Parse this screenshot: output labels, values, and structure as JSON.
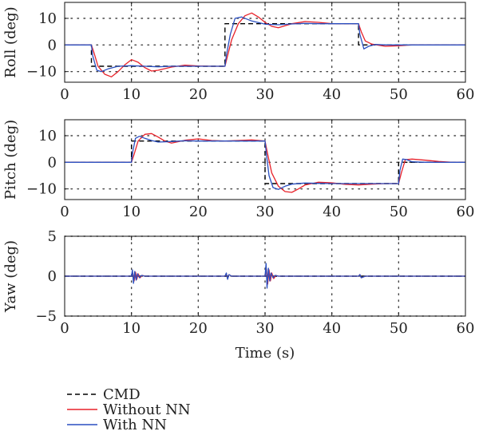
{
  "chart_data": [
    {
      "type": "line",
      "ylabel": "Roll (deg)",
      "xlabel": "",
      "xlim": [
        0,
        60
      ],
      "ylim": [
        -14,
        16
      ],
      "xticks": [
        "0",
        "10",
        "20",
        "30",
        "40",
        "50",
        "60"
      ],
      "yticks": [
        "10",
        "0",
        "−10"
      ],
      "ytick_values": [
        10,
        0,
        -10
      ],
      "grid": "dotted",
      "series": [
        {
          "name": "CMD",
          "color": "#000000",
          "dash": "dashed",
          "x": [
            0,
            4,
            4,
            24,
            24,
            44,
            44,
            60
          ],
          "y": [
            0,
            0,
            -8,
            -8,
            8,
            8,
            0,
            0
          ]
        },
        {
          "name": "Without NN",
          "color": "#e8222a",
          "x": [
            0,
            4,
            4.4,
            5,
            6,
            7,
            8,
            9,
            10,
            11,
            12,
            13,
            14,
            16,
            18,
            20,
            22,
            24,
            24.4,
            25,
            26,
            27,
            28,
            29,
            30,
            31,
            32,
            33,
            34,
            36,
            38,
            40,
            42,
            44,
            44.4,
            45,
            46,
            48,
            50,
            52,
            60
          ],
          "y": [
            0,
            0,
            -3,
            -8,
            -11,
            -12,
            -10,
            -7.5,
            -5.5,
            -6.5,
            -8.5,
            -9.8,
            -9.5,
            -8.3,
            -7.6,
            -7.9,
            -8,
            -8,
            -4,
            2,
            8,
            11,
            12,
            10.5,
            8.5,
            7,
            6.5,
            7.2,
            8,
            8.8,
            8.5,
            8,
            8,
            8,
            5,
            1.5,
            0.3,
            -0.5,
            -0.3,
            0,
            0
          ]
        },
        {
          "name": "With NN",
          "color": "#2a4fc0",
          "x": [
            0,
            4,
            4.2,
            4.8,
            5.5,
            6.5,
            8,
            10,
            12,
            14,
            16,
            18,
            20,
            22,
            24,
            24.2,
            24.8,
            25.5,
            26.5,
            28,
            30,
            32,
            34,
            36,
            38,
            40,
            42,
            44,
            44.2,
            44.8,
            45.5,
            46.5,
            48,
            60
          ],
          "y": [
            0,
            0,
            -4,
            -9.5,
            -10,
            -9,
            -8,
            -7.8,
            -8,
            -8.2,
            -8,
            -8,
            -8,
            -8,
            -8,
            -4,
            4,
            10,
            10.5,
            9,
            7.8,
            7.6,
            7.9,
            8.1,
            8,
            8,
            8,
            8,
            4,
            -1.5,
            -0.5,
            0.2,
            0,
            0
          ]
        }
      ]
    },
    {
      "type": "line",
      "ylabel": "Pitch (deg)",
      "xlabel": "",
      "xlim": [
        0,
        60
      ],
      "ylim": [
        -14,
        16
      ],
      "xticks": [
        "0",
        "10",
        "20",
        "30",
        "40",
        "50",
        "60"
      ],
      "yticks": [
        "10",
        "0",
        "−10"
      ],
      "ytick_values": [
        10,
        0,
        -10
      ],
      "grid": "dotted",
      "series": [
        {
          "name": "CMD",
          "color": "#000000",
          "dash": "dashed",
          "x": [
            0,
            10,
            10,
            30,
            30,
            50,
            50,
            60
          ],
          "y": [
            0,
            0,
            8,
            8,
            -8,
            -8,
            0,
            0
          ]
        },
        {
          "name": "Without NN",
          "color": "#e8222a",
          "x": [
            0,
            10,
            10.4,
            11,
            12,
            13,
            14,
            15,
            16,
            18,
            20,
            22,
            24,
            26,
            28,
            30,
            30.4,
            31,
            32,
            33,
            34,
            35,
            36,
            38,
            40,
            42,
            44,
            46,
            48,
            50,
            50.4,
            51,
            52,
            54,
            56,
            58,
            60
          ],
          "y": [
            0,
            0,
            3,
            8,
            10.5,
            10.8,
            9.5,
            8,
            7.2,
            8.3,
            8.8,
            8.2,
            8,
            8.2,
            8.4,
            8,
            3,
            -4,
            -9,
            -11,
            -11.3,
            -10,
            -8.5,
            -7.5,
            -7.7,
            -8.3,
            -8.5,
            -8.2,
            -8,
            -8,
            -4,
            1,
            1.2,
            0.8,
            0.3,
            0,
            0
          ]
        },
        {
          "name": "With NN",
          "color": "#2a4fc0",
          "x": [
            0,
            10,
            10.2,
            10.6,
            11.2,
            12,
            13,
            14,
            16,
            18,
            20,
            22,
            24,
            26,
            28,
            30,
            30.2,
            30.6,
            31.2,
            32,
            33,
            34,
            36,
            38,
            40,
            42,
            44,
            46,
            48,
            50,
            50.2,
            50.6,
            51.2,
            52,
            54,
            60
          ],
          "y": [
            0,
            0,
            4,
            9,
            9.8,
            9,
            8.2,
            7.6,
            7.8,
            8.1,
            8,
            8,
            8,
            8,
            8,
            8,
            3,
            -5,
            -9.5,
            -10.2,
            -9,
            -8.2,
            -7.8,
            -7.9,
            -8,
            -8,
            -8,
            -8,
            -8,
            -8,
            -3,
            1.2,
            1,
            0.2,
            0,
            0
          ]
        }
      ]
    },
    {
      "type": "line",
      "ylabel": "Yaw (deg)",
      "xlabel": "Time (s)",
      "xlim": [
        0,
        60
      ],
      "ylim": [
        -5,
        5
      ],
      "xticks": [
        "0",
        "10",
        "20",
        "30",
        "40",
        "50",
        "60"
      ],
      "yticks": [
        "5",
        "0",
        "−5"
      ],
      "ytick_values": [
        5,
        0,
        -5
      ],
      "grid": "dotted",
      "series": [
        {
          "name": "CMD",
          "color": "#000000",
          "dash": "dashed",
          "x": [
            0,
            60
          ],
          "y": [
            0,
            0
          ]
        },
        {
          "name": "Without NN",
          "color": "#e8222a",
          "x": [
            0,
            10,
            10.2,
            10.4,
            10.6,
            10.8,
            11,
            11.3,
            11.6,
            12,
            24,
            24.2,
            24.4,
            24.6,
            25,
            30,
            30.2,
            30.4,
            30.6,
            30.8,
            31,
            31.3,
            31.6,
            32,
            44,
            44.2,
            44.4,
            45,
            60
          ],
          "y": [
            0,
            0,
            0.4,
            -0.6,
            0.5,
            -0.4,
            0.3,
            -0.2,
            0.1,
            0,
            0,
            0.3,
            -0.3,
            0.2,
            0,
            0,
            0.9,
            -1,
            0.8,
            -0.6,
            0.4,
            -0.3,
            0.1,
            0,
            0,
            0.2,
            -0.2,
            0,
            0
          ]
        },
        {
          "name": "With NN",
          "color": "#2a4fc0",
          "x": [
            0,
            10,
            10.15,
            10.3,
            10.5,
            10.7,
            10.9,
            11.2,
            11.5,
            12,
            24,
            24.2,
            24.4,
            24.6,
            25,
            30,
            30.15,
            30.3,
            30.5,
            30.7,
            30.9,
            31.2,
            31.5,
            32,
            44,
            44.2,
            44.4,
            45,
            60
          ],
          "y": [
            0,
            0,
            0.8,
            -0.9,
            0.6,
            -0.5,
            0.3,
            -0.2,
            0.1,
            0,
            0,
            0.4,
            -0.4,
            0.2,
            0,
            0,
            1.6,
            -1.5,
            1,
            -0.6,
            0.4,
            -0.2,
            0.1,
            0,
            0,
            0.2,
            -0.2,
            0,
            0
          ]
        }
      ]
    }
  ],
  "legend": {
    "placement": "bottom-left",
    "items": [
      {
        "label": "CMD",
        "color": "#000000",
        "dash": "dashed"
      },
      {
        "label": "Without NN",
        "color": "#e8222a",
        "dash": "solid"
      },
      {
        "label": "With NN",
        "color": "#2a4fc0",
        "dash": "solid"
      }
    ]
  }
}
